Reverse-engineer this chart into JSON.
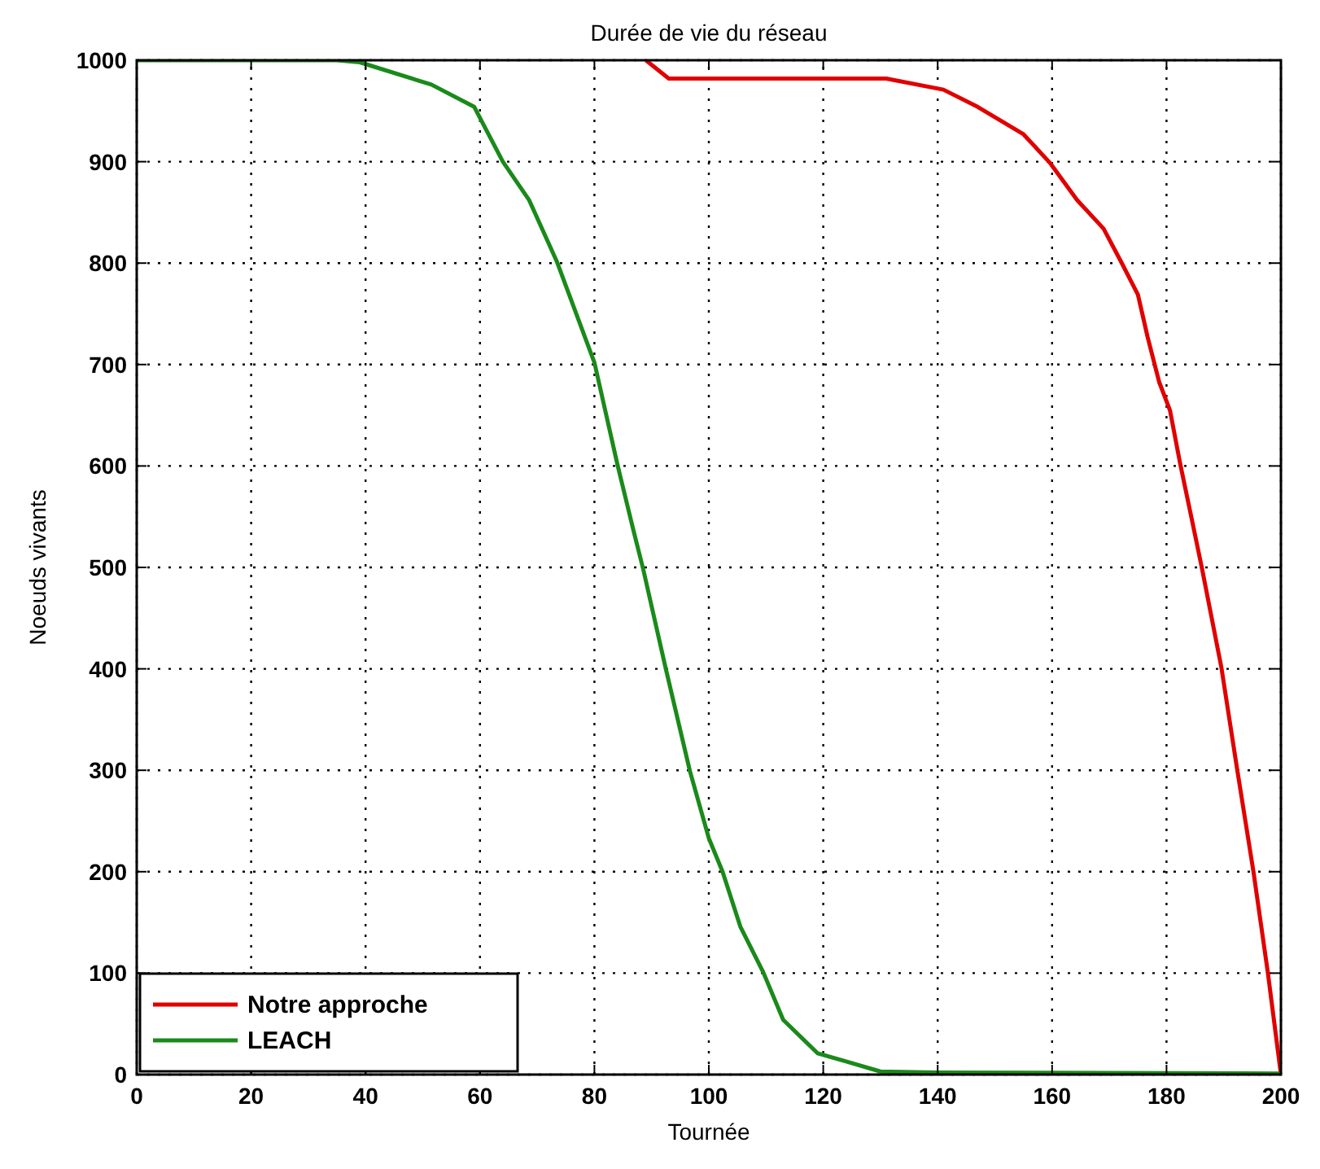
{
  "chart_data": {
    "type": "line",
    "title": "Durée de vie du réseau",
    "xlabel": "Tournée",
    "ylabel": "Noeuds vivants",
    "xlim": [
      0,
      200
    ],
    "xticks": [
      0,
      20,
      40,
      60,
      80,
      100,
      120,
      140,
      160,
      180,
      200
    ],
    "ylim": [
      0,
      1000
    ],
    "yticks": [
      0,
      100,
      200,
      300,
      400,
      500,
      600,
      700,
      800,
      900,
      1000
    ],
    "grid": true,
    "legend": "bottom left",
    "line_style": "solid",
    "series": [
      {
        "name": "Notre approche",
        "color": "#e00000",
        "x": [
          89,
          93,
          110,
          131,
          141,
          147,
          155,
          159.6,
          164.4,
          169,
          172,
          175,
          176.7,
          178.7,
          180.6,
          182.4,
          184.4,
          186.2,
          189.6,
          192.4,
          195.2,
          197.7,
          200
        ],
        "values": [
          1000,
          982,
          982,
          982,
          971,
          954,
          927,
          899,
          862,
          834,
          802,
          769,
          727,
          683,
          655,
          602,
          548,
          499,
          401,
          299,
          200,
          101,
          0
        ]
      },
      {
        "name": "LEACH",
        "color": "#1a8a1a",
        "x": [
          0,
          35,
          39,
          51.5,
          59,
          64,
          68.6,
          73.4,
          80,
          84,
          86.8,
          88.5,
          92.4,
          96.7,
          100,
          102.4,
          105.5,
          109.5,
          113,
          119,
          124,
          130,
          140,
          200
        ],
        "values": [
          1000,
          1000,
          998,
          976,
          954,
          900,
          862,
          802,
          702,
          602,
          537,
          499,
          402,
          299,
          233,
          200,
          146,
          101,
          54,
          21,
          13,
          3,
          2,
          1
        ]
      }
    ]
  }
}
